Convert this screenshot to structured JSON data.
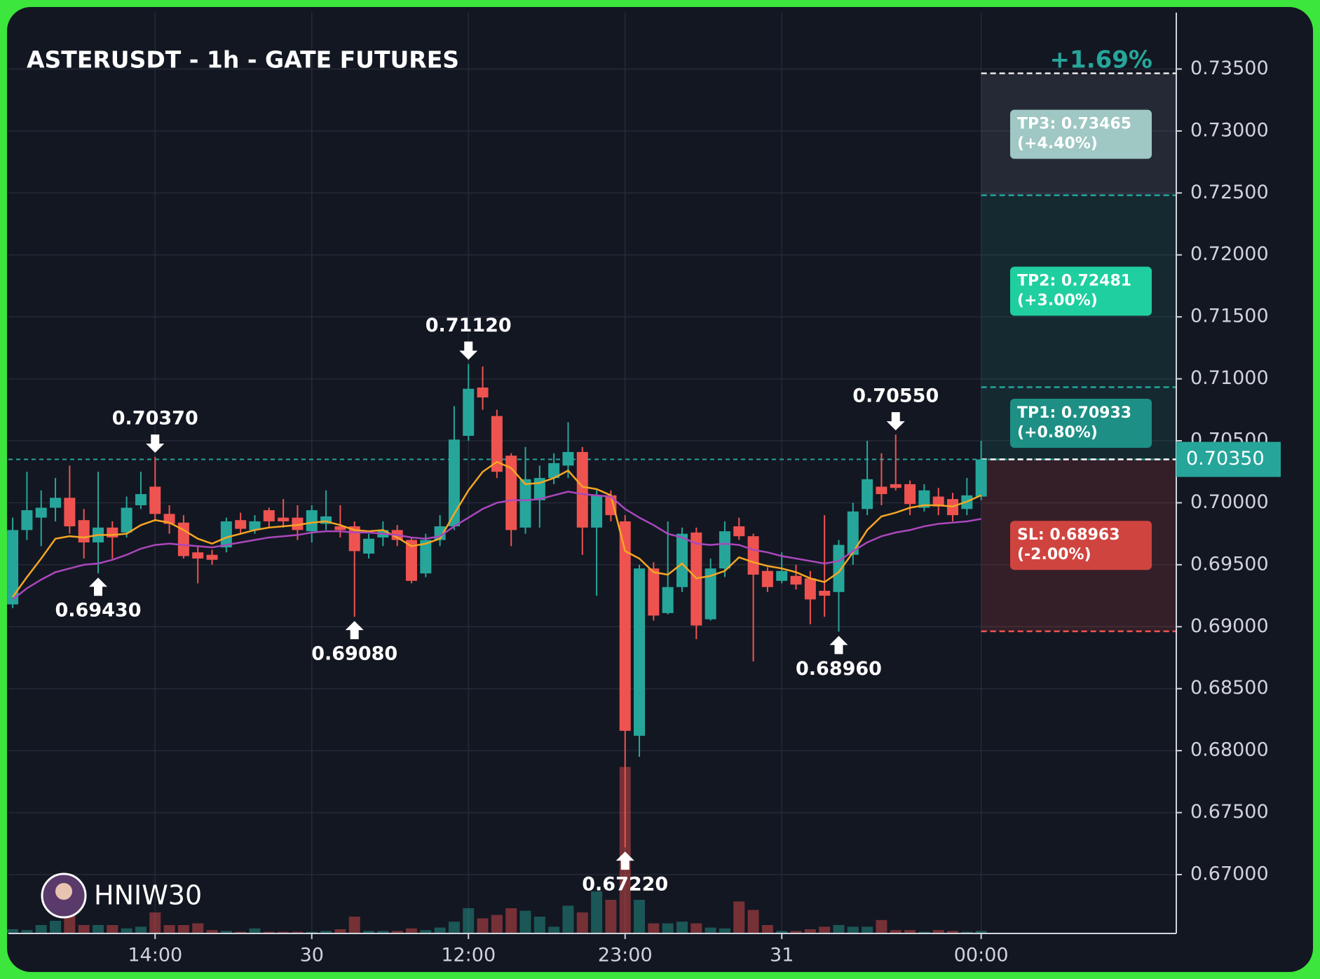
{
  "chart_data": {
    "type": "candlestick",
    "title": "ASTERUSDT - 1h - GATE FUTURES",
    "change_label": "+1.69%",
    "watermark": "HNIW30",
    "up_color": "#26a69a",
    "down_color": "#ef5350",
    "grid": true,
    "open": [
      0.6918,
      0.6978,
      0.6988,
      0.6996,
      0.7004,
      0.6986,
      0.6968,
      0.698,
      0.6976,
      0.6998,
      0.7013,
      0.6991,
      0.6984,
      0.696,
      0.6958,
      0.6964,
      0.6986,
      0.6978,
      0.6994,
      0.6988,
      0.6988,
      0.6977,
      0.6983,
      0.6981,
      0.6981,
      0.6959,
      0.6972,
      0.6978,
      0.697,
      0.6943,
      0.697,
      0.6981,
      0.7054,
      0.7093,
      0.707,
      0.7038,
      0.698,
      0.7002,
      0.702,
      0.703,
      0.7041,
      0.698,
      0.7006,
      0.6985,
      0.6812,
      0.6947,
      0.6911,
      0.6932,
      0.6976,
      0.6906,
      0.6947,
      0.6981,
      0.6973,
      0.6945,
      0.6937,
      0.6941,
      0.6939,
      0.6929,
      0.6928,
      0.6958,
      0.6995,
      0.7013,
      0.7015,
      0.7015,
      0.6996,
      0.7005,
      0.7003,
      0.6995,
      0.7005
    ],
    "high": [
      0.6988,
      0.7025,
      0.701,
      0.702,
      0.703,
      0.6995,
      0.7025,
      0.6985,
      0.7005,
      0.7025,
      0.7037,
      0.6998,
      0.699,
      0.6965,
      0.6962,
      0.6988,
      0.6992,
      0.699,
      0.6996,
      0.7003,
      0.6998,
      0.6998,
      0.701,
      0.6998,
      0.6985,
      0.6975,
      0.6985,
      0.6982,
      0.6972,
      0.6975,
      0.699,
      0.7078,
      0.7112,
      0.711,
      0.7075,
      0.704,
      0.7045,
      0.703,
      0.704,
      0.7065,
      0.7045,
      0.701,
      0.701,
      0.699,
      0.695,
      0.6952,
      0.6985,
      0.698,
      0.698,
      0.6955,
      0.6985,
      0.6988,
      0.6975,
      0.6948,
      0.696,
      0.695,
      0.6945,
      0.699,
      0.697,
      0.7,
      0.705,
      0.704,
      0.7055,
      0.7018,
      0.7015,
      0.7012,
      0.7008,
      0.702,
      0.705
    ],
    "low": [
      0.6915,
      0.697,
      0.6965,
      0.6985,
      0.6975,
      0.6955,
      0.6943,
      0.6955,
      0.6972,
      0.6995,
      0.6985,
      0.6975,
      0.6955,
      0.6935,
      0.695,
      0.696,
      0.6975,
      0.6975,
      0.698,
      0.698,
      0.697,
      0.6968,
      0.6978,
      0.6972,
      0.6908,
      0.6955,
      0.6965,
      0.6965,
      0.6935,
      0.694,
      0.6965,
      0.6978,
      0.705,
      0.7075,
      0.702,
      0.6965,
      0.6975,
      0.698,
      0.7015,
      0.702,
      0.6958,
      0.6925,
      0.6985,
      0.6722,
      0.6795,
      0.6905,
      0.691,
      0.6928,
      0.689,
      0.6905,
      0.694,
      0.697,
      0.6872,
      0.6928,
      0.6935,
      0.693,
      0.6902,
      0.6908,
      0.6896,
      0.695,
      0.699,
      0.6998,
      0.701,
      0.699,
      0.6993,
      0.699,
      0.6985,
      0.699,
      0.7002
    ],
    "close": [
      0.6978,
      0.6994,
      0.6996,
      0.7004,
      0.6981,
      0.6968,
      0.698,
      0.6972,
      0.6996,
      0.7007,
      0.6991,
      0.6983,
      0.6957,
      0.6955,
      0.6954,
      0.6985,
      0.6979,
      0.6985,
      0.6985,
      0.6985,
      0.6978,
      0.6994,
      0.6989,
      0.6978,
      0.6961,
      0.6971,
      0.6978,
      0.697,
      0.6937,
      0.697,
      0.6981,
      0.7051,
      0.7092,
      0.7085,
      0.7025,
      0.6978,
      0.7019,
      0.702,
      0.7032,
      0.7041,
      0.698,
      0.7006,
      0.699,
      0.6816,
      0.6947,
      0.6909,
      0.6932,
      0.6975,
      0.6901,
      0.6947,
      0.6977,
      0.6973,
      0.6942,
      0.6932,
      0.6945,
      0.6934,
      0.6922,
      0.6925,
      0.6966,
      0.6993,
      0.7019,
      0.7007,
      0.7012,
      0.6999,
      0.701,
      0.6997,
      0.699,
      0.7006,
      0.7035
    ],
    "volume": [
      5,
      4,
      10,
      15,
      22,
      10,
      10,
      10,
      6,
      8,
      25,
      10,
      10,
      12,
      4,
      3,
      2,
      6,
      2,
      2,
      2,
      2,
      3,
      5,
      20,
      3,
      3,
      3,
      6,
      4,
      7,
      14,
      30,
      18,
      22,
      30,
      27,
      20,
      8,
      33,
      25,
      50,
      40,
      198,
      40,
      12,
      12,
      14,
      12,
      7,
      6,
      38,
      28,
      10,
      3,
      3,
      5,
      8,
      10,
      8,
      8,
      16,
      4,
      4,
      2,
      4,
      3,
      2,
      3
    ],
    "volume_lim": [
      0,
      1095
    ],
    "moving_averages": [
      {
        "color": "#f5a623",
        "values": [
          0.6924,
          0.694,
          0.6955,
          0.6971,
          0.6973,
          0.6972,
          0.6974,
          0.6974,
          0.6975,
          0.6982,
          0.6986,
          0.6984,
          0.6978,
          0.6971,
          0.6967,
          0.6972,
          0.6975,
          0.6978,
          0.698,
          0.6981,
          0.6982,
          0.6984,
          0.6985,
          0.6982,
          0.6978,
          0.6977,
          0.6978,
          0.6972,
          0.6965,
          0.6967,
          0.6971,
          0.6991,
          0.701,
          0.7025,
          0.7033,
          0.7028,
          0.7015,
          0.7016,
          0.702,
          0.7026,
          0.7013,
          0.7011,
          0.7006,
          0.6961,
          0.6955,
          0.6944,
          0.6942,
          0.6951,
          0.6939,
          0.6941,
          0.6945,
          0.6956,
          0.6952,
          0.6949,
          0.6947,
          0.6944,
          0.6939,
          0.6936,
          0.6944,
          0.696,
          0.6978,
          0.6989,
          0.6992,
          0.6996,
          0.6998,
          0.6998,
          0.6997,
          0.7001,
          0.7006
        ]
      },
      {
        "color": "#ab47bc",
        "values": [
          0.6922,
          0.6931,
          0.6938,
          0.6944,
          0.6947,
          0.695,
          0.6951,
          0.6954,
          0.6958,
          0.6963,
          0.6966,
          0.6967,
          0.6966,
          0.6965,
          0.6964,
          0.6966,
          0.6968,
          0.697,
          0.6972,
          0.6973,
          0.6974,
          0.6976,
          0.6977,
          0.6977,
          0.6976,
          0.6976,
          0.6975,
          0.6974,
          0.6972,
          0.6971,
          0.6973,
          0.6981,
          0.6988,
          0.6995,
          0.7,
          0.7002,
          0.7002,
          0.7003,
          0.7006,
          0.7009,
          0.7007,
          0.7006,
          0.7005,
          0.6995,
          0.6988,
          0.6982,
          0.6975,
          0.6972,
          0.6967,
          0.6966,
          0.6967,
          0.6966,
          0.6962,
          0.696,
          0.6957,
          0.6955,
          0.6953,
          0.6951,
          0.6953,
          0.6961,
          0.6968,
          0.6973,
          0.6976,
          0.6978,
          0.6981,
          0.6983,
          0.6984,
          0.6985,
          0.6987
        ]
      }
    ],
    "xlim": [
      -0.3,
      81.7
    ],
    "xticks": [
      {
        "value": 10,
        "label": "14:00"
      },
      {
        "value": 21,
        "label": "30"
      },
      {
        "value": 32,
        "label": "12:00"
      },
      {
        "value": 43,
        "label": "23:00"
      },
      {
        "value": 54,
        "label": "31"
      },
      {
        "value": 68,
        "label": "00:00"
      }
    ],
    "ylim": [
      0.66525,
      0.73955
    ],
    "yticks": [
      {
        "value": 0.67,
        "label": "0.67000"
      },
      {
        "value": 0.675,
        "label": "0.67500"
      },
      {
        "value": 0.68,
        "label": "0.68000"
      },
      {
        "value": 0.685,
        "label": "0.68500"
      },
      {
        "value": 0.69,
        "label": "0.69000"
      },
      {
        "value": 0.695,
        "label": "0.69500"
      },
      {
        "value": 0.7,
        "label": "0.70000"
      },
      {
        "value": 0.705,
        "label": "0.70500"
      },
      {
        "value": 0.71,
        "label": "0.71000"
      },
      {
        "value": 0.715,
        "label": "0.71500"
      },
      {
        "value": 0.72,
        "label": "0.72000"
      },
      {
        "value": 0.725,
        "label": "0.72500"
      },
      {
        "value": 0.73,
        "label": "0.73000"
      },
      {
        "value": 0.735,
        "label": "0.73500"
      }
    ],
    "last_price": {
      "value": 0.7035,
      "label": "0.70350"
    },
    "extremes": [
      {
        "x": 10,
        "value": 0.7037,
        "label": "0.70370",
        "side": "high"
      },
      {
        "x": 6,
        "value": 0.6943,
        "label": "0.69430",
        "side": "low"
      },
      {
        "x": 24,
        "value": 0.6908,
        "label": "0.69080",
        "side": "low"
      },
      {
        "x": 32,
        "value": 0.7112,
        "label": "0.71120",
        "side": "high"
      },
      {
        "x": 43,
        "value": 0.6722,
        "label": "0.67220",
        "side": "low"
      },
      {
        "x": 62,
        "value": 0.7055,
        "label": "0.70550",
        "side": "high"
      },
      {
        "x": 58,
        "value": 0.6896,
        "label": "0.68960",
        "side": "low"
      }
    ],
    "levels": [
      {
        "value": 0.73465,
        "label": "TP3: 0.73465",
        "pct": "(+4.40%)",
        "color": "#9fc7c3",
        "line_color": "#e8e8e8",
        "zone_color": "rgba(120,130,150,0.18)"
      },
      {
        "value": 0.72481,
        "label": "TP2: 0.72481",
        "pct": "(+3.00%)",
        "color": "#1fcf9f",
        "line_color": "#26a69a",
        "zone_color": "rgba(38,166,154,0.13)"
      },
      {
        "value": 0.70933,
        "label": "TP1: 0.70933",
        "pct": "(+0.80%)",
        "color": "#1e8f85",
        "line_color": "#26a69a",
        "zone_color": "rgba(38,166,154,0.13)"
      },
      {
        "value": 0.68963,
        "label": "SL: 0.68963",
        "pct": "(-2.00%)",
        "color": "#d0443f",
        "line_color": "#ef5350",
        "zone_color": "rgba(239,83,80,0.15)"
      }
    ]
  }
}
